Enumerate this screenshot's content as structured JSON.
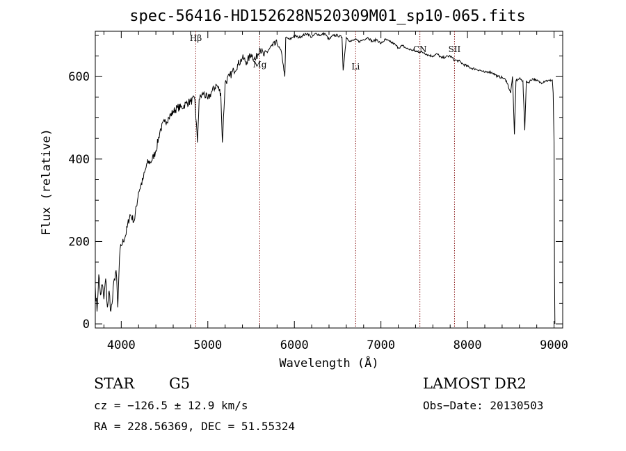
{
  "chart_data": {
    "type": "line",
    "title": "spec-56416-HD152628N520309M01_sp10-065.fits",
    "xlabel": "Wavelength (Å)",
    "ylabel": "Flux (relative)",
    "xlim": [
      3700,
      9100
    ],
    "ylim": [
      -10,
      710
    ],
    "x_ticks": [
      4000,
      5000,
      6000,
      7000,
      8000,
      9000
    ],
    "y_ticks": [
      0,
      200,
      400,
      600
    ],
    "grid": false,
    "series": [
      {
        "color": "#000000",
        "x": [
          3700,
          3720,
          3740,
          3760,
          3780,
          3800,
          3820,
          3840,
          3860,
          3880,
          3900,
          3920,
          3940,
          3960,
          3980,
          4000,
          4050,
          4100,
          4150,
          4200,
          4250,
          4300,
          4350,
          4400,
          4450,
          4500,
          4550,
          4600,
          4650,
          4700,
          4750,
          4800,
          4850,
          4880,
          4900,
          4950,
          5000,
          5050,
          5100,
          5150,
          5168,
          5200,
          5250,
          5300,
          5350,
          5400,
          5450,
          5500,
          5550,
          5600,
          5650,
          5700,
          5750,
          5800,
          5850,
          5890,
          5900,
          5950,
          6000,
          6050,
          6100,
          6150,
          6200,
          6250,
          6300,
          6350,
          6400,
          6450,
          6500,
          6550,
          6563,
          6600,
          6650,
          6700,
          6750,
          6800,
          6850,
          6900,
          6950,
          7000,
          7050,
          7100,
          7150,
          7200,
          7250,
          7300,
          7350,
          7400,
          7450,
          7500,
          7550,
          7600,
          7650,
          7700,
          7750,
          7800,
          7850,
          7900,
          7950,
          8000,
          8050,
          8100,
          8150,
          8200,
          8250,
          8300,
          8350,
          8400,
          8450,
          8498,
          8520,
          8542,
          8560,
          8600,
          8640,
          8662,
          8680,
          8700,
          8750,
          8800,
          8850,
          8900,
          8950,
          8980,
          8990,
          9000,
          9005,
          9010
        ],
        "y": [
          90,
          30,
          120,
          70,
          95,
          60,
          110,
          40,
          80,
          30,
          60,
          110,
          130,
          40,
          160,
          190,
          215,
          265,
          250,
          320,
          350,
          390,
          395,
          420,
          470,
          490,
          500,
          515,
          525,
          525,
          535,
          540,
          545,
          440,
          545,
          560,
          545,
          565,
          580,
          560,
          440,
          585,
          600,
          615,
          630,
          645,
          635,
          655,
          640,
          670,
          650,
          665,
          675,
          680,
          660,
          600,
          695,
          690,
          700,
          695,
          700,
          705,
          695,
          705,
          700,
          705,
          690,
          700,
          700,
          695,
          615,
          695,
          685,
          690,
          685,
          690,
          695,
          685,
          690,
          680,
          690,
          685,
          680,
          670,
          675,
          668,
          665,
          662,
          660,
          658,
          652,
          650,
          655,
          645,
          648,
          650,
          640,
          638,
          630,
          625,
          620,
          618,
          615,
          610,
          612,
          608,
          600,
          598,
          590,
          560,
          600,
          460,
          590,
          595,
          590,
          470,
          590,
          585,
          595,
          590,
          585,
          590,
          590,
          592,
          560,
          440,
          120,
          0
        ]
      }
    ],
    "line_markers": [
      {
        "label": "Hβ",
        "x": 4861,
        "color": "#8b1a1a"
      },
      {
        "label": "Mg",
        "x": 5600,
        "color": "#8b1a1a"
      },
      {
        "label": "Li",
        "x": 6708,
        "color": "#8b1a1a"
      },
      {
        "label": "CN",
        "x": 7450,
        "color": "#8b1a1a"
      },
      {
        "label": "SII",
        "x": 7850,
        "color": "#8b1a1a"
      }
    ]
  },
  "footer": {
    "object_type": "STAR",
    "subclass": "G5",
    "survey": "LAMOST DR2",
    "cz": "cz = −126.5 ± 12.9 km/s",
    "obs_date": "Obs−Date: 20130503",
    "coords": "RA = 228.56369, DEC =  51.55324"
  }
}
